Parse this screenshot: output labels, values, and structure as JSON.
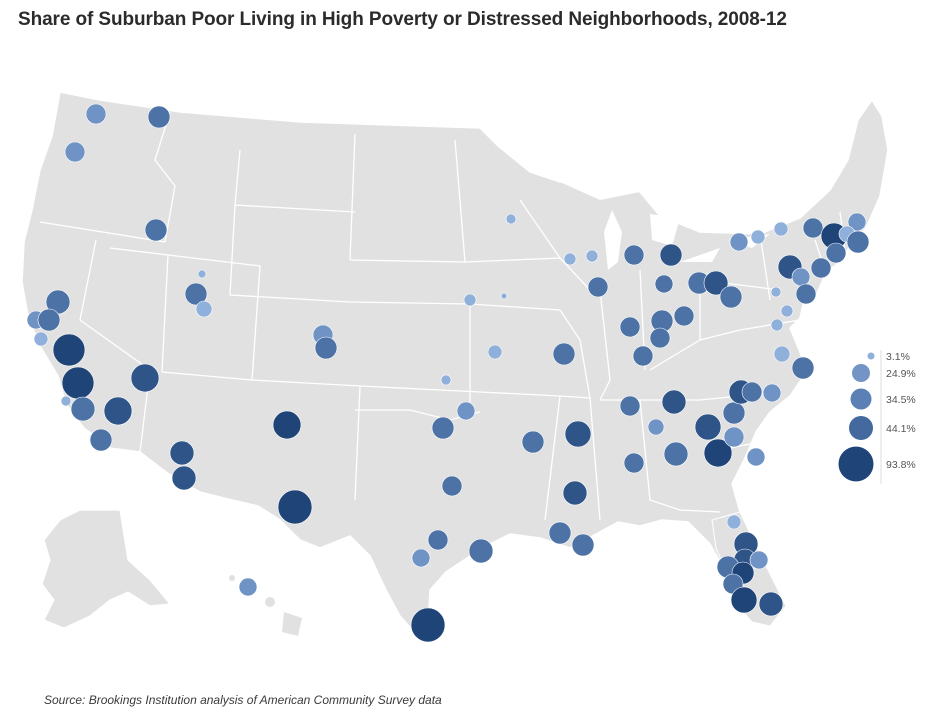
{
  "title": "Share of Suburban Poor Living in High Poverty or Distressed Neighborhoods, 2008-12",
  "source": "Source: Brookings Institution analysis of American Community Survey data",
  "colors": {
    "land": "#e1e1e1",
    "border": "#ffffff",
    "bubble_light": "#8fb0da",
    "bubble_mid": "#5b80b5",
    "bubble_dark": "#1f4478"
  },
  "legend": [
    {
      "label": "3.1%",
      "value": 3.1
    },
    {
      "label": "24.9%",
      "value": 24.9
    },
    {
      "label": "34.5%",
      "value": 34.5
    },
    {
      "label": "44.1%",
      "value": 44.1
    },
    {
      "label": "93.8%",
      "value": 93.8
    }
  ]
}
